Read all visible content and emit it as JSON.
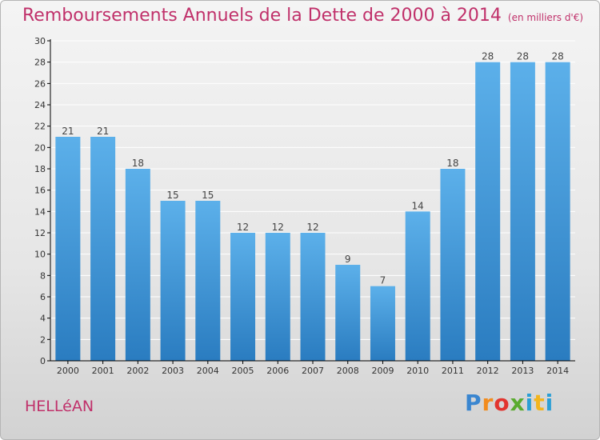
{
  "title": "Remboursements Annuels de la Dette de 2000 à 2014",
  "unit_note": "(en milliers d'€)",
  "town": "HELLéAN",
  "logo": {
    "text": "Proxiti",
    "letters": [
      "P",
      "r",
      "o",
      "x",
      "i",
      "t",
      "i"
    ]
  },
  "colors": {
    "title": "#c0306a",
    "bar_top": "#5cb0ea",
    "bar_bottom": "#2a7cc0",
    "axis": "#000000",
    "grid": "#ffffff"
  },
  "chart_data": {
    "type": "bar",
    "categories": [
      "2000",
      "2001",
      "2002",
      "2003",
      "2004",
      "2005",
      "2006",
      "2007",
      "2008",
      "2009",
      "2010",
      "2011",
      "2012",
      "2013",
      "2014"
    ],
    "values": [
      21,
      21,
      18,
      15,
      15,
      12,
      12,
      12,
      9,
      7,
      14,
      18,
      28,
      28,
      28
    ],
    "title": "Remboursements Annuels de la Dette de 2000 à 2014",
    "xlabel": "",
    "ylabel": "",
    "ylim": [
      0,
      30
    ],
    "yticks": [
      0,
      2,
      4,
      6,
      8,
      10,
      12,
      14,
      16,
      18,
      20,
      22,
      24,
      26,
      28,
      30
    ],
    "grid": true,
    "legend": "none"
  }
}
